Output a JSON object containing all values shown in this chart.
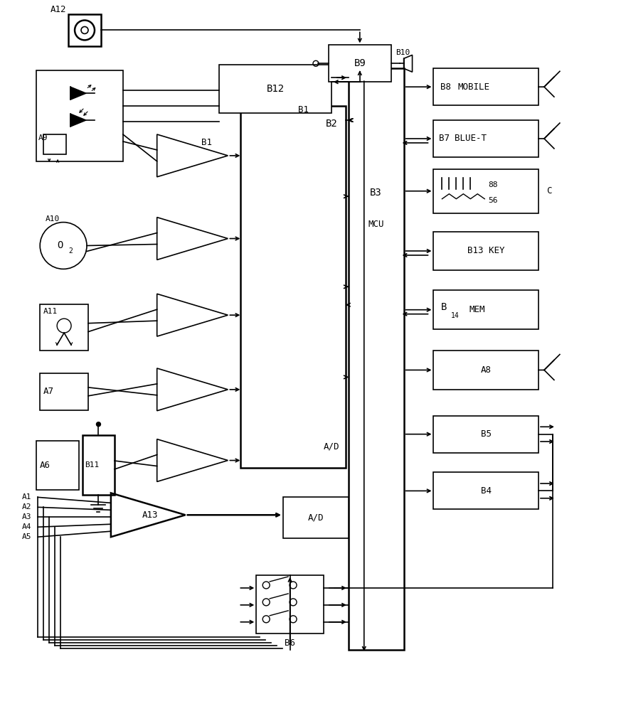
{
  "bg": "#ffffff",
  "lw": 1.2,
  "lw2": 1.8,
  "fw": 8.8,
  "fh": 10.0,
  "dpi": 100,
  "blocks": {
    "B3": [
      490,
      95,
      78,
      820
    ],
    "B2": [
      338,
      148,
      148,
      510
    ],
    "B12": [
      308,
      90,
      158,
      68
    ],
    "AD2": [
      398,
      700,
      92,
      58
    ],
    "B9": [
      462,
      62,
      88,
      52
    ],
    "B8": [
      610,
      95,
      148,
      52
    ],
    "B7": [
      610,
      168,
      148,
      52
    ],
    "DP": [
      610,
      237,
      148,
      62
    ],
    "B13": [
      610,
      325,
      148,
      55
    ],
    "B14": [
      610,
      408,
      148,
      55
    ],
    "A8": [
      610,
      493,
      148,
      55
    ],
    "B5": [
      610,
      585,
      148,
      52
    ],
    "B4": [
      610,
      665,
      148,
      52
    ],
    "B6": [
      360,
      810,
      95,
      82
    ],
    "A12": [
      95,
      18,
      46,
      46
    ],
    "A9b": [
      50,
      98,
      122,
      128
    ],
    "A11": [
      55,
      428,
      68,
      65
    ],
    "A7": [
      55,
      525,
      68,
      52
    ],
    "A6": [
      50,
      620,
      60,
      70
    ],
    "B11": [
      115,
      612,
      45,
      85
    ]
  },
  "tris": {
    "B1": [
      220,
      218,
      100,
      60
    ],
    "T2": [
      220,
      335,
      100,
      60
    ],
    "T3": [
      220,
      443,
      100,
      60
    ],
    "T4": [
      220,
      548,
      100,
      60
    ],
    "T5": [
      220,
      648,
      100,
      60
    ],
    "A13": [
      155,
      725,
      105,
      62
    ]
  }
}
